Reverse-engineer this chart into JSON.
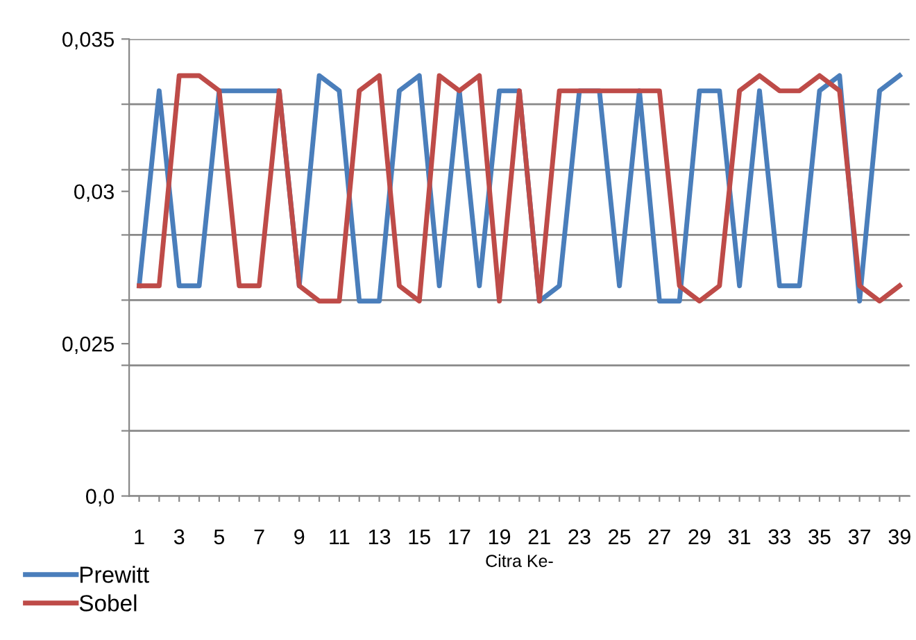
{
  "chart_data": {
    "type": "line",
    "xlabel": "Citra Ke-",
    "categories": [
      "1",
      null,
      "3",
      null,
      "5",
      null,
      "7",
      null,
      "9",
      null,
      "11",
      null,
      "13",
      null,
      "15",
      null,
      "17",
      null,
      "19",
      null,
      "21",
      null,
      "23",
      null,
      "25",
      null,
      "27",
      null,
      "29",
      null,
      "31",
      null,
      "33",
      null,
      "35",
      null,
      "37",
      null,
      "39"
    ],
    "series": [
      {
        "name": "Prewitt",
        "color": "#4a7ebb",
        "values": [
          0.0269,
          0.0333,
          0.0269,
          0.0269,
          0.0333,
          0.0333,
          0.0333,
          0.0333,
          0.0269,
          0.0338,
          0.0333,
          0.0264,
          0.0264,
          0.0333,
          0.0338,
          0.0269,
          0.0333,
          0.0269,
          0.0333,
          0.0333,
          0.0264,
          0.0269,
          0.0333,
          0.0333,
          0.0269,
          0.0333,
          0.0264,
          0.0264,
          0.0333,
          0.0333,
          0.0269,
          0.0333,
          0.0269,
          0.0269,
          0.0333,
          0.0338,
          0.0264,
          0.0333,
          0.0338
        ]
      },
      {
        "name": "Sobel",
        "color": "#be4b48",
        "values": [
          0.0269,
          0.0269,
          0.0338,
          0.0338,
          0.0333,
          0.0269,
          0.0269,
          0.0333,
          0.0269,
          0.0264,
          0.0264,
          0.0333,
          0.0338,
          0.0269,
          0.0264,
          0.0338,
          0.0333,
          0.0338,
          0.0264,
          0.0333,
          0.0264,
          0.0333,
          0.0333,
          0.0333,
          0.0333,
          0.0333,
          0.0333,
          0.0269,
          0.0264,
          0.0269,
          0.0333,
          0.0338,
          0.0333,
          0.0333,
          0.0338,
          0.0333,
          0.0269,
          0.0264,
          0.0269
        ]
      }
    ],
    "ylim": [
      0.02,
      0.035
    ],
    "yticks": [
      {
        "value": 0.035,
        "label": "0,035"
      },
      {
        "value": 0.03286,
        "label": null
      },
      {
        "value": 0.03071,
        "label": null
      },
      {
        "value": 0.03,
        "label": "0,03"
      },
      {
        "value": 0.02857,
        "label": null
      },
      {
        "value": 0.02643,
        "label": null
      },
      {
        "value": 0.025,
        "label": "0,025"
      },
      {
        "value": 0.02429,
        "label": null
      },
      {
        "value": 0.02214,
        "label": null
      },
      {
        "value": 0.02,
        "label": "0,0"
      }
    ],
    "grid": "y",
    "legend": "bottom left",
    "marker": "none",
    "line_style": "solid"
  }
}
